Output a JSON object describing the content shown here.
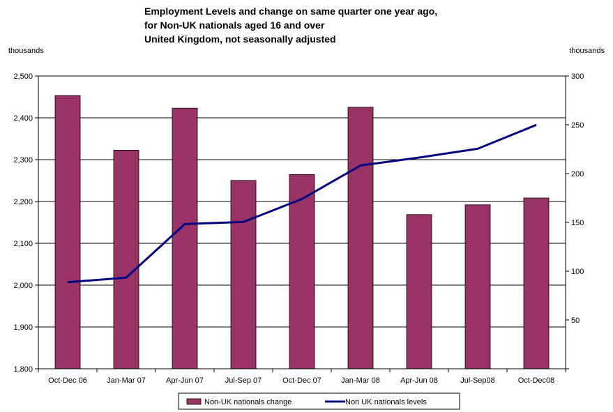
{
  "chart_data": {
    "type": "bar+line",
    "title_lines": [
      "Employment Levels and change on same quarter one year ago,",
      "for Non-UK nationals aged 16 and over",
      "United Kingdom, not seasonally adjusted"
    ],
    "left_axis_unit": "thousands",
    "right_axis_unit": "thousands",
    "categories": [
      "Oct-Dec 06",
      "Jan-Mar 07",
      "Apr-Jun 07",
      "Jul-Sep 07",
      "Oct-Dec 07",
      "Jan-Mar 08",
      "Apr-Jun 08",
      "Jul-Sep08",
      "Oct-Dec08"
    ],
    "left_axis": {
      "min": 1800,
      "max": 2500,
      "step": 100,
      "tick_labels": [
        "1,800",
        "1,900",
        "2,000",
        "2,100",
        "2,200",
        "2,300",
        "2,400",
        "2,500"
      ]
    },
    "right_axis": {
      "min": 0,
      "max": 300,
      "step": 50,
      "tick_labels": [
        "",
        "50",
        "100",
        "150",
        "200",
        "250",
        "300"
      ]
    },
    "grid": "horizontal",
    "legend_position": "bottom",
    "series": [
      {
        "name": "Non-UK nationals change",
        "type": "bar",
        "axis": "right",
        "color": "#993366",
        "values": [
          280,
          224,
          267,
          193,
          199,
          268,
          158,
          168,
          175
        ]
      },
      {
        "name": "Non UK nationals levels",
        "type": "line",
        "axis": "left",
        "color": "#000080",
        "values": [
          2007,
          2018,
          2146,
          2151,
          2206,
          2286,
          2305,
          2326,
          2383
        ]
      }
    ]
  }
}
